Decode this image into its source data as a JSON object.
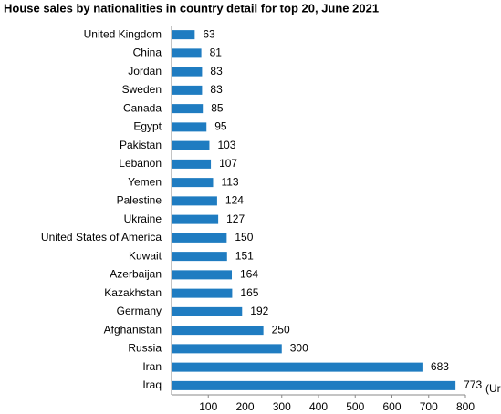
{
  "chart_data": {
    "type": "bar",
    "orientation": "horizontal",
    "title": "House sales by nationalities in country detail for top 20, June 2021",
    "x_label": "(Ur",
    "categories": [
      "United Kingdom",
      "China",
      "Jordan",
      "Sweden",
      "Canada",
      "Egypt",
      "Pakistan",
      "Lebanon",
      "Yemen",
      "Palestine",
      "Ukraine",
      "United States of America",
      "Kuwait",
      "Azerbaijan",
      "Kazakhstan",
      "Germany",
      "Afghanistan",
      "Russia",
      "Iran",
      "Iraq"
    ],
    "values": [
      63,
      81,
      83,
      83,
      85,
      95,
      103,
      107,
      113,
      124,
      127,
      150,
      151,
      164,
      165,
      192,
      250,
      300,
      683,
      773
    ],
    "color": "#1f7cc1",
    "xlim": [
      0,
      800
    ],
    "xticks": [
      100,
      200,
      300,
      400,
      500,
      600,
      700,
      800
    ],
    "grid": false
  }
}
